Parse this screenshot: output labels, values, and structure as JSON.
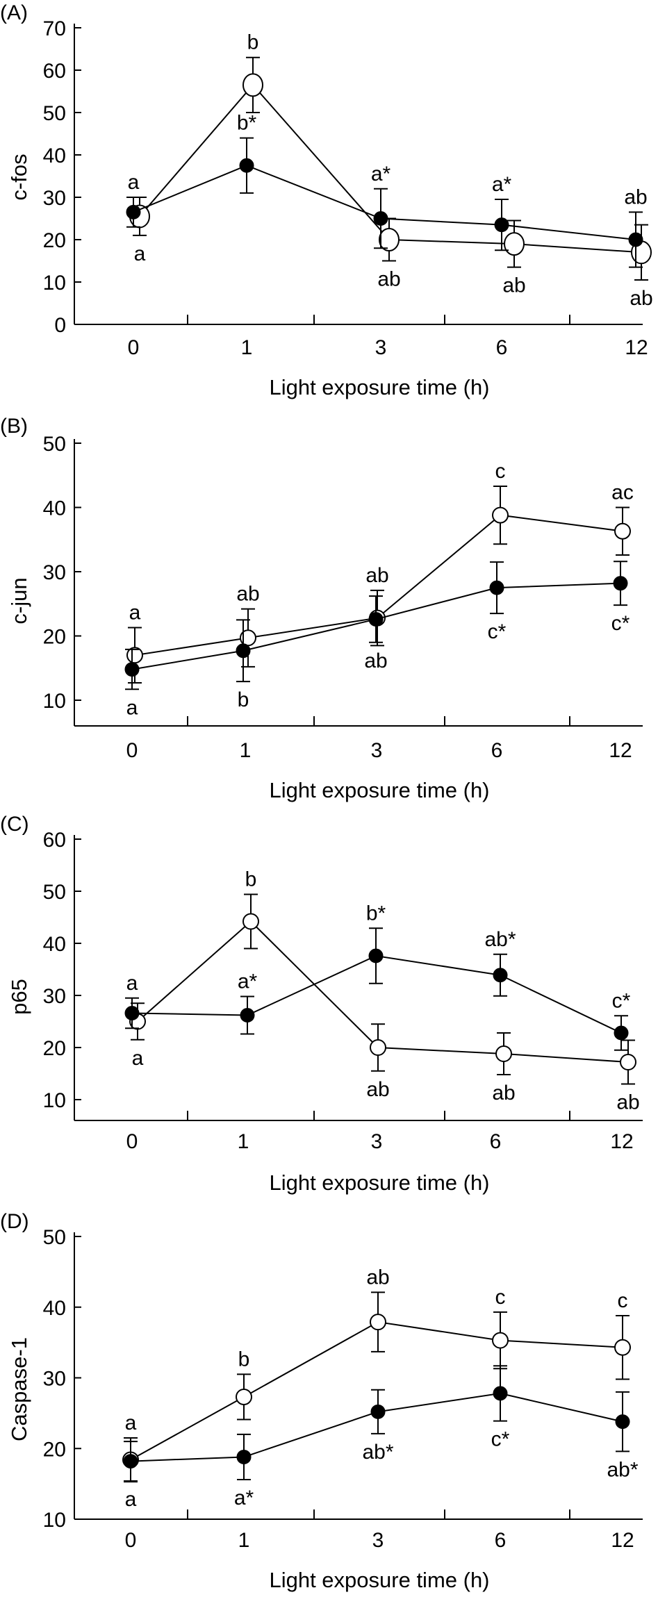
{
  "chart_data": [
    {
      "type": "line",
      "panel_label": "(A)",
      "xlabel": "Light exposure time (h)",
      "ylabel": "c-fos",
      "categories": [
        "0",
        "1",
        "3",
        "6",
        "12"
      ],
      "ylim": [
        0,
        70
      ],
      "yticks": [
        0,
        10,
        20,
        30,
        40,
        50,
        60,
        70
      ],
      "series": [
        {
          "marker": "open",
          "values": [
            25.5,
            56.5,
            20,
            19,
            17
          ],
          "errors": [
            4.5,
            6.5,
            5,
            5.5,
            6.5
          ],
          "labels": [
            "a",
            "b",
            "ab",
            "ab",
            "ab"
          ]
        },
        {
          "marker": "filled",
          "values": [
            26.5,
            37.5,
            25,
            23.5,
            20
          ],
          "errors": [
            3.5,
            6.5,
            7,
            6,
            6.5
          ],
          "labels": [
            "a",
            "b*",
            "a*",
            "a*",
            "ab"
          ]
        }
      ]
    },
    {
      "type": "line",
      "panel_label": "(B)",
      "xlabel": "Light exposure time (h)",
      "ylabel": "c-jun",
      "categories": [
        "0",
        "1",
        "3",
        "6",
        "12"
      ],
      "ylim": [
        6,
        50
      ],
      "yticks": [
        10,
        20,
        30,
        40,
        50
      ],
      "series": [
        {
          "marker": "open",
          "values": [
            17,
            19.7,
            22.8,
            38.8,
            36.3
          ],
          "errors": [
            4.3,
            4.5,
            4.3,
            4.5,
            3.7
          ],
          "labels": [
            "a",
            "ab",
            "ab",
            "c",
            "ac"
          ]
        },
        {
          "marker": "filled",
          "values": [
            14.8,
            17.7,
            22.6,
            27.5,
            28.2
          ],
          "errors": [
            3.1,
            4.8,
            3.6,
            4,
            3.4
          ],
          "labels": [
            "a",
            "b",
            "ab",
            "c*",
            "c*"
          ]
        }
      ]
    },
    {
      "type": "line",
      "panel_label": "(C)",
      "xlabel": "Light exposure time (h)",
      "ylabel": "p65",
      "categories": [
        "0",
        "1",
        "3",
        "6",
        "12"
      ],
      "ylim": [
        6,
        60
      ],
      "yticks": [
        10,
        20,
        30,
        40,
        50,
        60
      ],
      "series": [
        {
          "marker": "open",
          "values": [
            25,
            44.2,
            20,
            18.8,
            17.2
          ],
          "errors": [
            3.5,
            5.2,
            4.5,
            4,
            4.2
          ],
          "labels": [
            "a",
            "b",
            "ab",
            "ab",
            "ab"
          ]
        },
        {
          "marker": "filled",
          "values": [
            26.6,
            26.2,
            37.6,
            33.9,
            22.8
          ],
          "errors": [
            2.9,
            3.6,
            5.3,
            4,
            3.3
          ],
          "labels": [
            "a",
            "a*",
            "b*",
            "ab*",
            "c*"
          ]
        }
      ]
    },
    {
      "type": "line",
      "panel_label": "(D)",
      "xlabel": "Light exposure time (h)",
      "ylabel": "Caspase-1",
      "categories": [
        "0",
        "1",
        "3",
        "6",
        "12"
      ],
      "ylim": [
        10,
        50
      ],
      "yticks": [
        10,
        20,
        30,
        40,
        50
      ],
      "series": [
        {
          "marker": "open",
          "values": [
            18.4,
            27.3,
            37.9,
            35.3,
            34.3
          ],
          "errors": [
            3.1,
            3.2,
            4.2,
            4,
            4.5
          ],
          "labels": [
            "a",
            "b",
            "ab",
            "c",
            "c"
          ]
        },
        {
          "marker": "filled",
          "values": [
            18.2,
            18.8,
            25.2,
            27.8,
            23.8
          ],
          "errors": [
            2.8,
            3.2,
            3.1,
            3.9,
            4.2
          ],
          "labels": [
            "a",
            "a*",
            "ab*",
            "c*",
            "ab*"
          ]
        }
      ]
    }
  ]
}
